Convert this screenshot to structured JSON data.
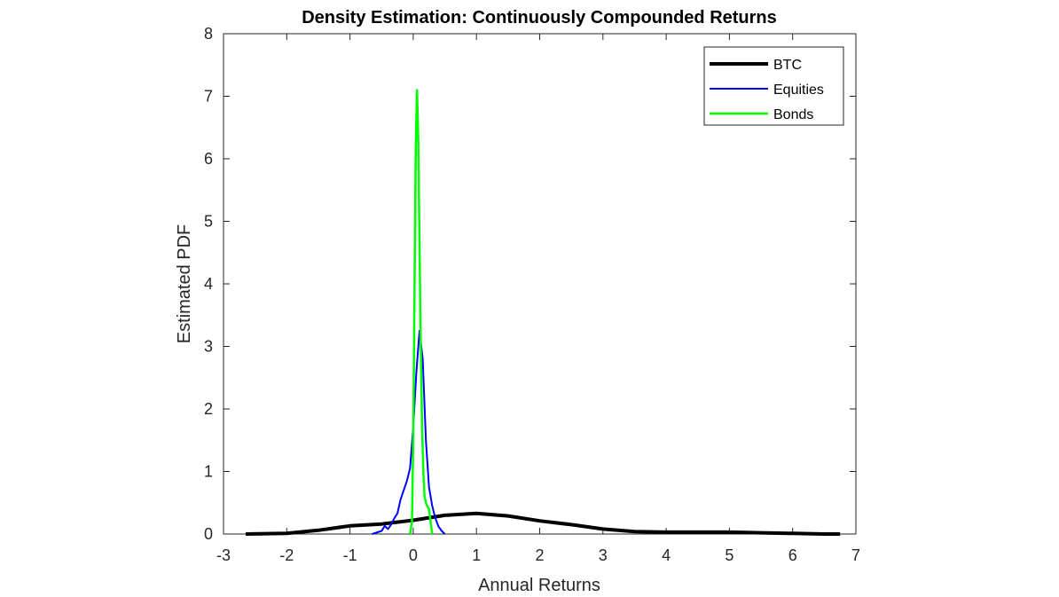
{
  "chart_data": {
    "type": "line",
    "title": "Density Estimation: Continuously Compounded Returns",
    "xlabel": "Annual Returns",
    "ylabel": "Estimated PDF",
    "xlim": [
      -3,
      7
    ],
    "ylim": [
      0,
      8
    ],
    "xticks": [
      "-3",
      "-2",
      "-1",
      "0",
      "1",
      "2",
      "3",
      "4",
      "5",
      "6",
      "7"
    ],
    "yticks": [
      "0",
      "1",
      "2",
      "3",
      "4",
      "5",
      "6",
      "7",
      "8"
    ],
    "grid": false,
    "legend_position": "top-right",
    "series": [
      {
        "name": "BTC",
        "color": "#000000",
        "x": [
          -2.65,
          -2.0,
          -1.5,
          -1.0,
          -0.5,
          0.0,
          0.5,
          1.0,
          1.5,
          2.0,
          2.5,
          3.0,
          3.5,
          4.0,
          4.5,
          5.0,
          5.5,
          6.0,
          6.5,
          6.75
        ],
        "y": [
          0.0,
          0.01,
          0.06,
          0.13,
          0.16,
          0.22,
          0.3,
          0.33,
          0.29,
          0.21,
          0.15,
          0.08,
          0.04,
          0.03,
          0.03,
          0.03,
          0.02,
          0.01,
          0.0,
          0.0
        ]
      },
      {
        "name": "Equities",
        "color": "#0000ff",
        "x": [
          -0.65,
          -0.5,
          -0.45,
          -0.4,
          -0.35,
          -0.3,
          -0.25,
          -0.2,
          -0.1,
          -0.05,
          0.0,
          0.05,
          0.1,
          0.15,
          0.2,
          0.25,
          0.3,
          0.35,
          0.4,
          0.45,
          0.5
        ],
        "y": [
          0.0,
          0.05,
          0.13,
          0.08,
          0.15,
          0.25,
          0.33,
          0.55,
          0.85,
          1.05,
          1.7,
          2.6,
          3.25,
          2.8,
          1.5,
          0.75,
          0.45,
          0.25,
          0.12,
          0.05,
          0.0
        ]
      },
      {
        "name": "Bonds",
        "color": "#00ff00",
        "x": [
          -0.05,
          -0.02,
          0.0,
          0.02,
          0.04,
          0.06,
          0.08,
          0.1,
          0.12,
          0.14,
          0.16,
          0.18,
          0.2,
          0.22,
          0.25,
          0.28,
          0.3
        ],
        "y": [
          0.0,
          0.2,
          1.5,
          3.8,
          6.2,
          7.1,
          6.3,
          4.6,
          2.9,
          1.7,
          1.0,
          0.6,
          0.5,
          0.45,
          0.4,
          0.15,
          0.0
        ]
      }
    ]
  }
}
